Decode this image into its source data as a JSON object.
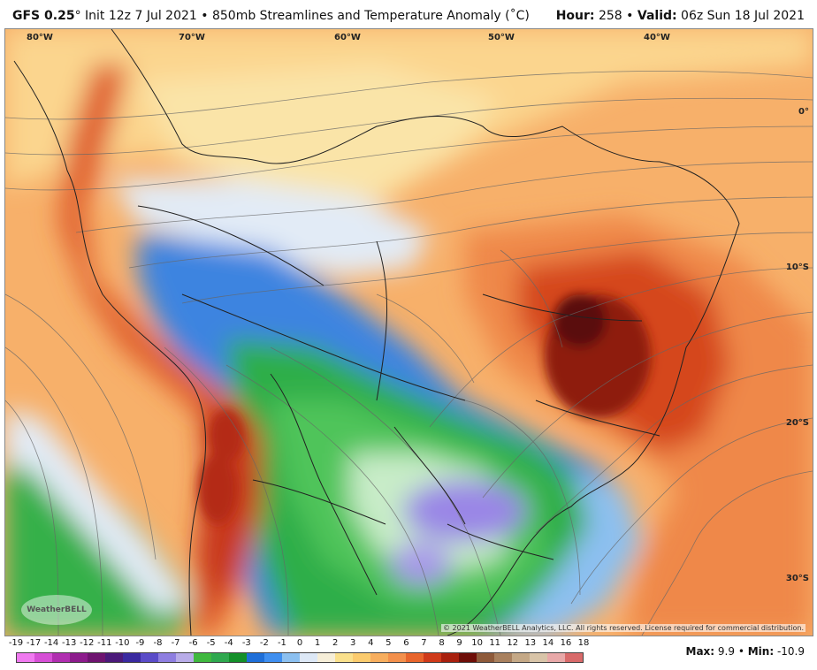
{
  "header": {
    "model": "GFS 0.25",
    "degree": "°",
    "init": " Init 12z 7 Jul 2021",
    "bullet": " • ",
    "product": "850mb Streamlines and Temperature Anomaly (˚C)",
    "hour_label": "Hour:",
    "hour_value": " 258 ",
    "valid_label": "Valid:",
    "valid_value": " 06z Sun 18 Jul 2021"
  },
  "map": {
    "lon_labels": [
      "80°W",
      "70°W",
      "60°W",
      "50°W",
      "40°W"
    ],
    "lat_labels": [
      "0°",
      "10°S",
      "20°S",
      "30°S"
    ],
    "copyright": "© 2021 WeatherBELL Analytics, LLC. All rights reserved. License required for commercial distribution.",
    "logo_text": "WeatherBELL"
  },
  "colorbar": {
    "ticks": [
      "-19",
      "-17",
      "-14",
      "-13",
      "-12",
      "-11",
      "-10",
      "-9",
      "-8",
      "-7",
      "-6",
      "-5",
      "-4",
      "-3",
      "-2",
      "-1",
      "0",
      "1",
      "2",
      "3",
      "4",
      "5",
      "6",
      "7",
      "8",
      "9",
      "10",
      "11",
      "12",
      "13",
      "14",
      "16",
      "18"
    ],
    "colors": [
      "#f07af0",
      "#d64fd6",
      "#b02fb0",
      "#8c1c8c",
      "#6e1470",
      "#4b1a7a",
      "#3a2aa0",
      "#5a4cc8",
      "#8e7ee0",
      "#b8ace8",
      "#3fb83f",
      "#2fa84f",
      "#14902a",
      "#1f6fd8",
      "#3f8ff0",
      "#8cc0f0",
      "#dde8f6",
      "#f6eed8",
      "#fae08c",
      "#fbcb6e",
      "#f7ae5e",
      "#f3904c",
      "#e8652c",
      "#cf3a1a",
      "#a8200e",
      "#6e0e08",
      "#8e5a3a",
      "#a8805e",
      "#c4a886",
      "#d8c4a8",
      "#e8a8a8",
      "#d86a6a"
    ]
  },
  "stats": {
    "max_label": "Max:",
    "max_value": " 9.9",
    "sep": " • ",
    "min_label": "Min:",
    "min_value": " -10.9"
  }
}
